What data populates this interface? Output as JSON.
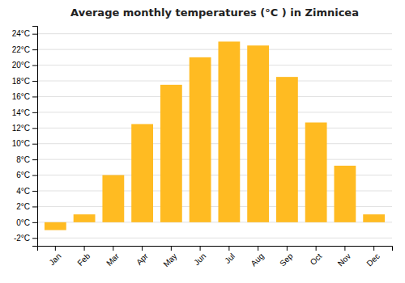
{
  "chart_data": {
    "type": "bar",
    "title": "Average monthly temperatures (°C ) in Zimnicea",
    "categories": [
      "Jan",
      "Feb",
      "Mar",
      "Apr",
      "May",
      "Jun",
      "Jul",
      "Aug",
      "Sep",
      "Oct",
      "Nov",
      "Dec"
    ],
    "values": [
      -1.0,
      1.0,
      6.0,
      12.5,
      17.5,
      21.0,
      23.0,
      22.5,
      18.5,
      12.7,
      7.2,
      1.0
    ],
    "color": "#FFBB22",
    "ylim": [
      -3,
      25
    ],
    "yticks": [
      {
        "value": -2,
        "label": "-2°C"
      },
      {
        "value": 0,
        "label": "0°C"
      },
      {
        "value": 2,
        "label": "2°C"
      },
      {
        "value": 4,
        "label": "4°C"
      },
      {
        "value": 6,
        "label": "6°C"
      },
      {
        "value": 8,
        "label": "8°C"
      },
      {
        "value": 10,
        "label": "10°C"
      },
      {
        "value": 12,
        "label": "12°C"
      },
      {
        "value": 14,
        "label": "14°C"
      },
      {
        "value": 16,
        "label": "16°C"
      },
      {
        "value": 18,
        "label": "18°C"
      },
      {
        "value": 20,
        "label": "20°C"
      },
      {
        "value": 22,
        "label": "22°C"
      },
      {
        "value": 24,
        "label": "24°C"
      }
    ],
    "grid": true
  }
}
